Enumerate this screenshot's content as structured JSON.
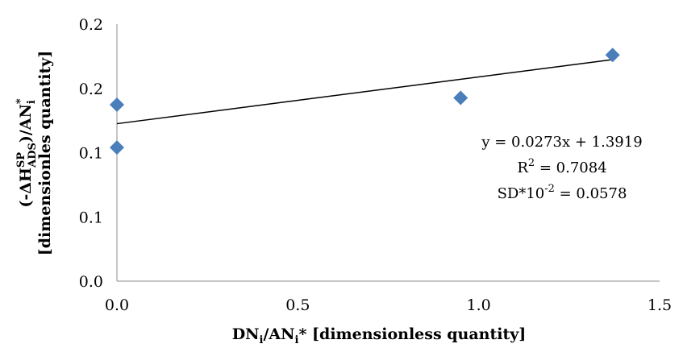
{
  "chart_data": {
    "type": "scatter",
    "x": [
      0.0,
      0.0,
      0.95,
      1.37
    ],
    "y": [
      1.403,
      1.378,
      1.407,
      1.432
    ],
    "xlim": [
      0,
      1.5
    ],
    "ylim": [
      1.3,
      1.45
    ],
    "x_ticks": [
      "0.0",
      "0.5",
      "1.0",
      "1.5"
    ],
    "y_ticks": [
      "0.0",
      "0.1",
      "0.1",
      "0.2",
      "0.2"
    ],
    "xlabel": {
      "main1": "DN",
      "sub1": "i",
      "mid": "/AN",
      "sub2": "i",
      "end": "* [dimensionless quantity]"
    },
    "ylabel": {
      "line1_pre": "(-ΔH",
      "line1_sup": "SP",
      "line1_sub": "ADS",
      "line1_mid": ")/AN",
      "line1_sub2": "i",
      "line1_sup2": "*",
      "line2": "[dimensionles quantity]"
    },
    "trendline": {
      "slope": 0.0273,
      "intercept": 1.3919
    },
    "annotation": {
      "equation": "y = 0.0273x + 1.3919",
      "r2_pre": "R",
      "r2_sup": "2",
      "r2_post": " = 0.7084",
      "sd_pre": "SD*10",
      "sd_sup": "-2",
      "sd_post": " = 0.0578"
    },
    "marker_color": "#4a7ebb",
    "grid": false,
    "legend": "none"
  }
}
